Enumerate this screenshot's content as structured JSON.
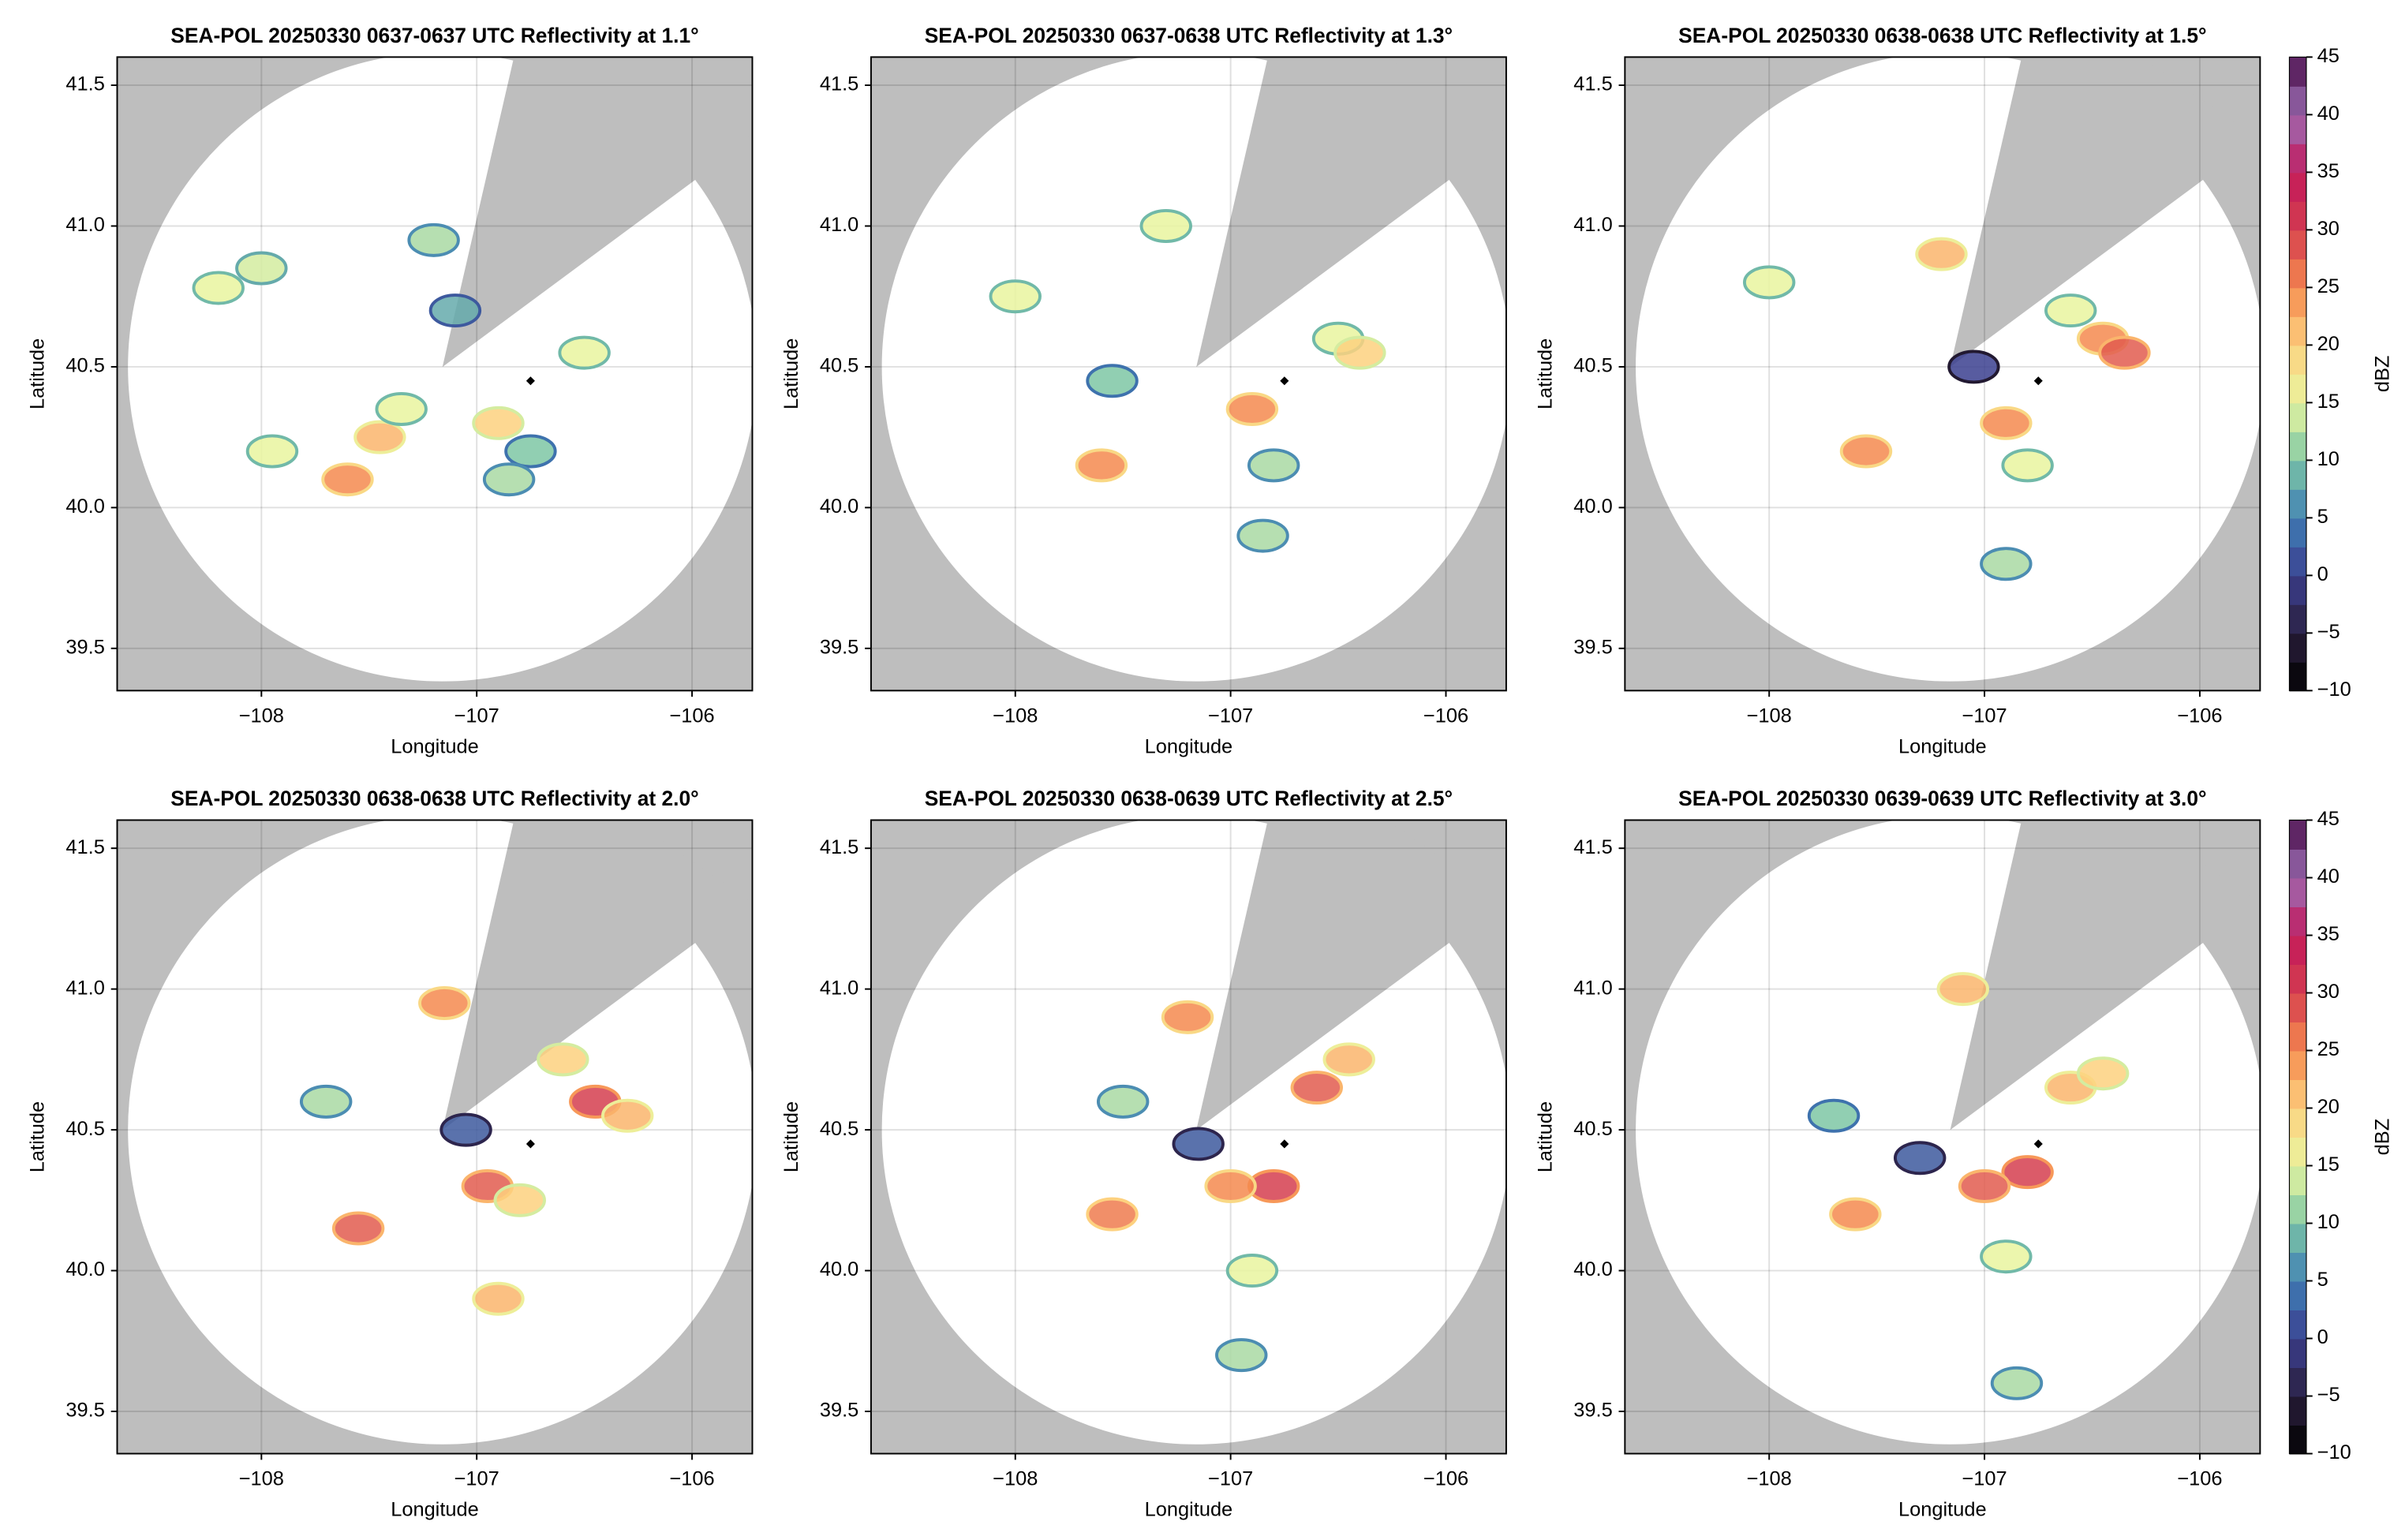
{
  "chart_data": [
    {
      "type": "radar",
      "title": "SEA-POL 20250330 0637-0637 UTC Reflectivity at 1.1°",
      "xlabel": "Longitude",
      "ylabel": "Latitude",
      "xlim": [
        -108.67,
        -105.72
      ],
      "ylim": [
        39.35,
        41.6
      ],
      "xticks": [
        {
          "value": -108,
          "label": "−108"
        },
        {
          "value": -107,
          "label": "−107"
        },
        {
          "value": -106,
          "label": "−106"
        }
      ],
      "yticks": [
        39.5,
        {
          "value": 40,
          "label": "40.0"
        },
        40.5,
        {
          "value": 41,
          "label": "41.0"
        },
        41.5
      ],
      "grid": true,
      "site": {
        "x": -106.75,
        "y": 40.45
      },
      "echoes": {
        "x": [
          -107.6,
          -107.45,
          -107.35,
          -106.9,
          -106.75,
          -106.85,
          -108.2,
          -108.0,
          -107.2,
          -107.1,
          -106.5,
          -107.95
        ],
        "y": [
          40.1,
          40.25,
          40.35,
          40.3,
          40.2,
          40.1,
          40.78,
          40.85,
          40.95,
          40.7,
          40.55,
          40.2
        ],
        "values": [
          25,
          22,
          15,
          20,
          10,
          12,
          15,
          14,
          12,
          8,
          15,
          15
        ]
      }
    },
    {
      "type": "radar",
      "title": "SEA-POL 20250330 0637-0638 UTC Reflectivity at 1.3°",
      "xlabel": "Longitude",
      "ylabel": "Latitude",
      "xlim": [
        -108.67,
        -105.72
      ],
      "ylim": [
        39.35,
        41.6
      ],
      "xticks": [
        {
          "value": -108,
          "label": "−108"
        },
        {
          "value": -107,
          "label": "−107"
        },
        {
          "value": -106,
          "label": "−106"
        }
      ],
      "yticks": [
        39.5,
        {
          "value": 40,
          "label": "40.0"
        },
        40.5,
        {
          "value": 41,
          "label": "41.0"
        },
        41.5
      ],
      "grid": true,
      "site": {
        "x": -106.75,
        "y": 40.45
      },
      "echoes": {
        "x": [
          -106.5,
          -106.4,
          -107.6,
          -106.9,
          -106.8,
          -107.3,
          -108.0,
          -107.55,
          -106.85
        ],
        "y": [
          40.6,
          40.55,
          40.15,
          40.35,
          40.15,
          41.0,
          40.75,
          40.45,
          39.9
        ],
        "values": [
          15,
          20,
          25,
          25,
          12,
          15,
          15,
          10,
          12
        ]
      }
    },
    {
      "type": "radar",
      "title": "SEA-POL 20250330 0638-0638 UTC Reflectivity at 1.5°",
      "xlabel": "Longitude",
      "ylabel": "Latitude",
      "xlim": [
        -108.67,
        -105.72
      ],
      "ylim": [
        39.35,
        41.6
      ],
      "xticks": [
        {
          "value": -108,
          "label": "−108"
        },
        {
          "value": -107,
          "label": "−107"
        },
        {
          "value": -106,
          "label": "−106"
        }
      ],
      "yticks": [
        39.5,
        {
          "value": 40,
          "label": "40.0"
        },
        40.5,
        {
          "value": 41,
          "label": "41.0"
        },
        41.5
      ],
      "grid": true,
      "site": {
        "x": -106.75,
        "y": 40.45
      },
      "echoes": {
        "x": [
          -106.45,
          -106.35,
          -106.6,
          -107.55,
          -106.9,
          -106.8,
          -107.2,
          -108.0,
          -107.05,
          -106.9
        ],
        "y": [
          40.6,
          40.55,
          40.7,
          40.2,
          40.3,
          40.15,
          40.9,
          40.8,
          40.5,
          39.8
        ],
        "values": [
          25,
          28,
          15,
          25,
          25,
          15,
          22,
          15,
          0,
          12
        ]
      },
      "colorbar": {
        "label": "dBZ",
        "lim": [
          -10,
          45
        ],
        "ticks": [
          {
            "value": -10,
            "label": "−10"
          },
          {
            "value": -5,
            "label": "−5"
          },
          0,
          5,
          10,
          15,
          20,
          25,
          30,
          35,
          40,
          45
        ],
        "colors": [
          "#000000",
          "#2a1f3d",
          "#3b3f8f",
          "#3f7fb5",
          "#7ec7a5",
          "#e9f59f",
          "#fdd17f",
          "#f58a4f",
          "#d53e4f",
          "#c2185b",
          "#9c6fb5",
          "#4a0d4a"
        ]
      }
    },
    {
      "type": "radar",
      "title": "SEA-POL 20250330 0638-0638 UTC Reflectivity at 2.0°",
      "xlabel": "Longitude",
      "ylabel": "Latitude",
      "xlim": [
        -108.67,
        -105.72
      ],
      "ylim": [
        39.35,
        41.6
      ],
      "xticks": [
        {
          "value": -108,
          "label": "−108"
        },
        {
          "value": -107,
          "label": "−107"
        },
        {
          "value": -106,
          "label": "−106"
        }
      ],
      "yticks": [
        39.5,
        {
          "value": 40,
          "label": "40.0"
        },
        40.5,
        {
          "value": 41,
          "label": "41.0"
        },
        41.5
      ],
      "grid": true,
      "site": {
        "x": -106.75,
        "y": 40.45
      },
      "echoes": {
        "x": [
          -106.45,
          -106.6,
          -106.3,
          -107.55,
          -106.95,
          -106.8,
          -107.15,
          -107.05,
          -106.9,
          -107.7
        ],
        "y": [
          40.6,
          40.75,
          40.55,
          40.15,
          40.3,
          40.25,
          40.95,
          40.5,
          39.9,
          40.6
        ],
        "values": [
          30,
          20,
          22,
          28,
          28,
          20,
          25,
          2,
          22,
          12
        ]
      }
    },
    {
      "type": "radar",
      "title": "SEA-POL 20250330 0638-0639 UTC Reflectivity at 2.5°",
      "xlabel": "Longitude",
      "ylabel": "Latitude",
      "xlim": [
        -108.67,
        -105.72
      ],
      "ylim": [
        39.35,
        41.6
      ],
      "xticks": [
        {
          "value": -108,
          "label": "−108"
        },
        {
          "value": -107,
          "label": "−107"
        },
        {
          "value": -106,
          "label": "−106"
        }
      ],
      "yticks": [
        39.5,
        {
          "value": 40,
          "label": "40.0"
        },
        40.5,
        {
          "value": 41,
          "label": "41.0"
        },
        41.5
      ],
      "grid": true,
      "site": {
        "x": -106.75,
        "y": 40.45
      },
      "echoes": {
        "x": [
          -106.6,
          -106.45,
          -106.8,
          -107.0,
          -107.55,
          -107.2,
          -107.5,
          -106.9,
          -107.15,
          -106.95
        ],
        "y": [
          40.65,
          40.75,
          40.3,
          40.3,
          40.2,
          40.9,
          40.6,
          40.0,
          40.45,
          39.7
        ],
        "values": [
          28,
          22,
          30,
          25,
          26,
          25,
          12,
          15,
          2,
          12
        ]
      }
    },
    {
      "type": "radar",
      "title": "SEA-POL 20250330 0639-0639 UTC Reflectivity at 3.0°",
      "xlabel": "Longitude",
      "ylabel": "Latitude",
      "xlim": [
        -108.67,
        -105.72
      ],
      "ylim": [
        39.35,
        41.6
      ],
      "xticks": [
        {
          "value": -108,
          "label": "−108"
        },
        {
          "value": -107,
          "label": "−107"
        },
        {
          "value": -106,
          "label": "−106"
        }
      ],
      "yticks": [
        39.5,
        {
          "value": 40,
          "label": "40.0"
        },
        40.5,
        {
          "value": 41,
          "label": "41.0"
        },
        41.5
      ],
      "grid": true,
      "site": {
        "x": -106.75,
        "y": 40.45
      },
      "echoes": {
        "x": [
          -106.6,
          -106.45,
          -106.8,
          -107.0,
          -107.6,
          -107.1,
          -107.3,
          -106.9,
          -107.7,
          -106.85
        ],
        "y": [
          40.65,
          40.7,
          40.35,
          40.3,
          40.2,
          41.0,
          40.4,
          40.05,
          40.55,
          39.6
        ],
        "values": [
          22,
          20,
          30,
          28,
          25,
          22,
          2,
          15,
          10,
          12
        ]
      },
      "colorbar": {
        "label": "dBZ",
        "lim": [
          -10,
          45
        ],
        "ticks": [
          {
            "value": -10,
            "label": "−10"
          },
          {
            "value": -5,
            "label": "−5"
          },
          0,
          5,
          10,
          15,
          20,
          25,
          30,
          35,
          40,
          45
        ],
        "colors": [
          "#000000",
          "#2a1f3d",
          "#3b3f8f",
          "#3f7fb5",
          "#7ec7a5",
          "#e9f59f",
          "#fdd17f",
          "#f58a4f",
          "#d53e4f",
          "#c2185b",
          "#9c6fb5",
          "#4a0d4a"
        ]
      }
    }
  ]
}
